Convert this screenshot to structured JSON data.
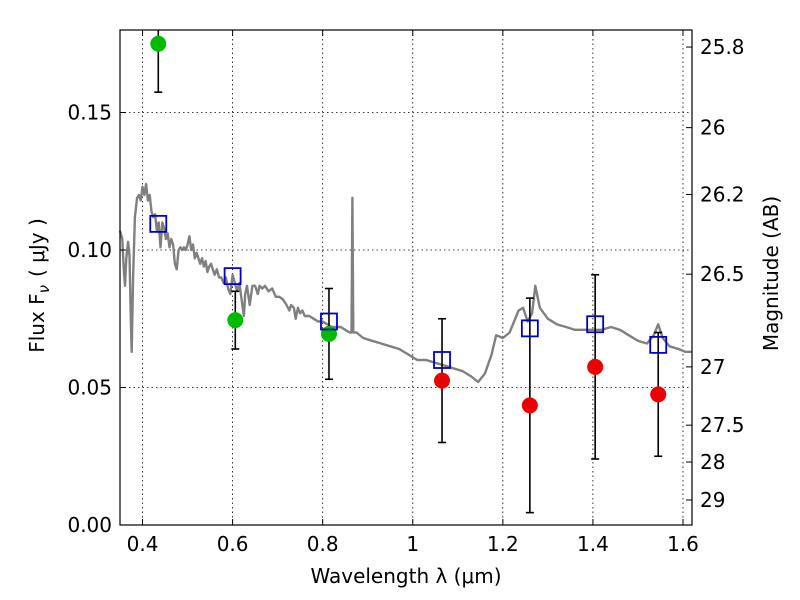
{
  "chart_data": {
    "type": "scatter",
    "xlabel": "Wavelength  λ (μm)",
    "ylabel": "Flux  F",
    "ylabel_subscript": "ν",
    "ylabel_units": "( μJy )",
    "y2label": "Magnitude (AB)",
    "xlim": [
      0.35,
      1.62
    ],
    "ylim": [
      0.0,
      0.18
    ],
    "xticks": [
      {
        "value": 0.4,
        "label": "0.4"
      },
      {
        "value": 0.6,
        "label": "0.6"
      },
      {
        "value": 0.8,
        "label": "0.8"
      },
      {
        "value": 1.0,
        "label": "1"
      },
      {
        "value": 1.2,
        "label": "1.2"
      },
      {
        "value": 1.4,
        "label": "1.4"
      },
      {
        "value": 1.6,
        "label": "1.6"
      }
    ],
    "yticks": [
      {
        "value": 0.0,
        "label": "0.00"
      },
      {
        "value": 0.05,
        "label": "0.05"
      },
      {
        "value": 0.1,
        "label": "0.10"
      },
      {
        "value": 0.15,
        "label": "0.15"
      }
    ],
    "y2ticks": [
      {
        "label": "25.8",
        "flux": 0.1738
      },
      {
        "label": "26",
        "flux": 0.1445
      },
      {
        "label": "26.2",
        "flux": 0.1202
      },
      {
        "label": "26.5",
        "flux": 0.0912
      },
      {
        "label": "27",
        "flux": 0.0575
      },
      {
        "label": "27.5",
        "flux": 0.0363
      },
      {
        "label": "28",
        "flux": 0.0229
      },
      {
        "label": "29",
        "flux": 0.0091
      }
    ],
    "grid": true,
    "series": [
      {
        "marker": "circle",
        "color": "#00bb00",
        "points": [
          {
            "x": 0.435,
            "y": 0.175,
            "err": 0.0176
          },
          {
            "x": 0.606,
            "y": 0.0745,
            "err": 0.0105
          },
          {
            "x": 0.814,
            "y": 0.0695,
            "err": 0.0165
          }
        ]
      },
      {
        "marker": "circle",
        "color": "#ee0000",
        "points": [
          {
            "x": 1.065,
            "y": 0.0525,
            "err": 0.0225
          },
          {
            "x": 1.26,
            "y": 0.0435,
            "err": 0.039
          },
          {
            "x": 1.405,
            "y": 0.0575,
            "err": 0.0335
          },
          {
            "x": 1.545,
            "y": 0.0475,
            "err": 0.0225
          }
        ]
      },
      {
        "marker": "square",
        "color": "#0000cc",
        "points": [
          {
            "x": 0.435,
            "y": 0.1095
          },
          {
            "x": 0.6,
            "y": 0.0905
          },
          {
            "x": 0.814,
            "y": 0.074
          },
          {
            "x": 1.065,
            "y": 0.06
          },
          {
            "x": 1.26,
            "y": 0.0715
          },
          {
            "x": 1.405,
            "y": 0.073
          },
          {
            "x": 1.545,
            "y": 0.0655
          }
        ]
      }
    ],
    "model_line": {
      "color": "#808080",
      "points": [
        [
          0.35,
          0.107
        ],
        [
          0.355,
          0.104
        ],
        [
          0.358,
          0.094
        ],
        [
          0.361,
          0.087
        ],
        [
          0.364,
          0.097
        ],
        [
          0.368,
          0.103
        ],
        [
          0.371,
          0.098
        ],
        [
          0.374,
          0.075
        ],
        [
          0.376,
          0.063
        ],
        [
          0.379,
          0.09
        ],
        [
          0.383,
          0.112
        ],
        [
          0.388,
          0.119
        ],
        [
          0.392,
          0.12
        ],
        [
          0.396,
          0.118
        ],
        [
          0.4,
          0.123
        ],
        [
          0.404,
          0.12
        ],
        [
          0.408,
          0.124
        ],
        [
          0.412,
          0.118
        ],
        [
          0.416,
          0.12
        ],
        [
          0.42,
          0.114
        ],
        [
          0.424,
          0.112
        ],
        [
          0.428,
          0.113
        ],
        [
          0.432,
          0.107
        ],
        [
          0.436,
          0.11
        ],
        [
          0.44,
          0.101
        ],
        [
          0.444,
          0.11
        ],
        [
          0.448,
          0.108
        ],
        [
          0.452,
          0.104
        ],
        [
          0.456,
          0.106
        ],
        [
          0.46,
          0.101
        ],
        [
          0.464,
          0.104
        ],
        [
          0.468,
          0.102
        ],
        [
          0.472,
          0.095
        ],
        [
          0.476,
          0.093
        ],
        [
          0.48,
          0.1
        ],
        [
          0.484,
          0.101
        ],
        [
          0.488,
          0.1
        ],
        [
          0.492,
          0.101
        ],
        [
          0.496,
          0.1
        ],
        [
          0.5,
          0.102
        ],
        [
          0.504,
          0.105
        ],
        [
          0.508,
          0.1
        ],
        [
          0.512,
          0.102
        ],
        [
          0.516,
          0.097
        ],
        [
          0.52,
          0.099
        ],
        [
          0.524,
          0.097
        ],
        [
          0.528,
          0.095
        ],
        [
          0.532,
          0.097
        ],
        [
          0.536,
          0.094
        ],
        [
          0.54,
          0.096
        ],
        [
          0.544,
          0.092
        ],
        [
          0.548,
          0.094
        ],
        [
          0.552,
          0.095
        ],
        [
          0.556,
          0.093
        ],
        [
          0.56,
          0.091
        ],
        [
          0.565,
          0.093
        ],
        [
          0.57,
          0.09
        ],
        [
          0.575,
          0.09
        ],
        [
          0.58,
          0.088
        ],
        [
          0.585,
          0.09
        ],
        [
          0.59,
          0.086
        ],
        [
          0.595,
          0.084
        ],
        [
          0.6,
          0.091
        ],
        [
          0.605,
          0.088
        ],
        [
          0.61,
          0.085
        ],
        [
          0.615,
          0.088
        ],
        [
          0.62,
          0.082
        ],
        [
          0.625,
          0.076
        ],
        [
          0.628,
          0.084
        ],
        [
          0.632,
          0.087
        ],
        [
          0.638,
          0.08
        ],
        [
          0.644,
          0.087
        ],
        [
          0.65,
          0.087
        ],
        [
          0.656,
          0.084
        ],
        [
          0.66,
          0.087
        ],
        [
          0.666,
          0.086
        ],
        [
          0.672,
          0.087
        ],
        [
          0.68,
          0.085
        ],
        [
          0.688,
          0.086
        ],
        [
          0.696,
          0.083
        ],
        [
          0.704,
          0.083
        ],
        [
          0.712,
          0.082
        ],
        [
          0.72,
          0.08
        ],
        [
          0.726,
          0.078
        ],
        [
          0.73,
          0.08
        ],
        [
          0.736,
          0.079
        ],
        [
          0.74,
          0.075
        ],
        [
          0.745,
          0.079
        ],
        [
          0.75,
          0.077
        ],
        [
          0.755,
          0.078
        ],
        [
          0.76,
          0.076
        ],
        [
          0.77,
          0.076
        ],
        [
          0.78,
          0.075
        ],
        [
          0.79,
          0.074
        ],
        [
          0.8,
          0.074
        ],
        [
          0.81,
          0.073
        ],
        [
          0.82,
          0.072
        ],
        [
          0.83,
          0.072
        ],
        [
          0.84,
          0.072
        ],
        [
          0.85,
          0.071
        ],
        [
          0.86,
          0.07
        ],
        [
          0.864,
          0.07
        ],
        [
          0.866,
          0.119
        ],
        [
          0.868,
          0.07
        ],
        [
          0.875,
          0.07
        ],
        [
          0.89,
          0.068
        ],
        [
          0.91,
          0.067
        ],
        [
          0.93,
          0.066
        ],
        [
          0.95,
          0.065
        ],
        [
          0.97,
          0.064
        ],
        [
          0.99,
          0.062
        ],
        [
          1.01,
          0.06
        ],
        [
          1.03,
          0.06
        ],
        [
          1.05,
          0.059
        ],
        [
          1.07,
          0.058
        ],
        [
          1.09,
          0.057
        ],
        [
          1.11,
          0.056
        ],
        [
          1.13,
          0.054
        ],
        [
          1.145,
          0.052
        ],
        [
          1.16,
          0.055
        ],
        [
          1.175,
          0.062
        ],
        [
          1.185,
          0.069
        ],
        [
          1.2,
          0.068
        ],
        [
          1.215,
          0.07
        ],
        [
          1.225,
          0.074
        ],
        [
          1.235,
          0.078
        ],
        [
          1.245,
          0.079
        ],
        [
          1.255,
          0.074
        ],
        [
          1.265,
          0.077
        ],
        [
          1.272,
          0.087
        ],
        [
          1.282,
          0.079
        ],
        [
          1.3,
          0.075
        ],
        [
          1.32,
          0.073
        ],
        [
          1.34,
          0.072
        ],
        [
          1.36,
          0.071
        ],
        [
          1.38,
          0.071
        ],
        [
          1.4,
          0.071
        ],
        [
          1.42,
          0.071
        ],
        [
          1.44,
          0.072
        ],
        [
          1.46,
          0.071
        ],
        [
          1.48,
          0.069
        ],
        [
          1.5,
          0.067
        ],
        [
          1.52,
          0.066
        ],
        [
          1.535,
          0.069
        ],
        [
          1.545,
          0.073
        ],
        [
          1.555,
          0.068
        ],
        [
          1.57,
          0.065
        ],
        [
          1.59,
          0.064
        ],
        [
          1.605,
          0.063
        ],
        [
          1.62,
          0.063
        ]
      ]
    }
  }
}
